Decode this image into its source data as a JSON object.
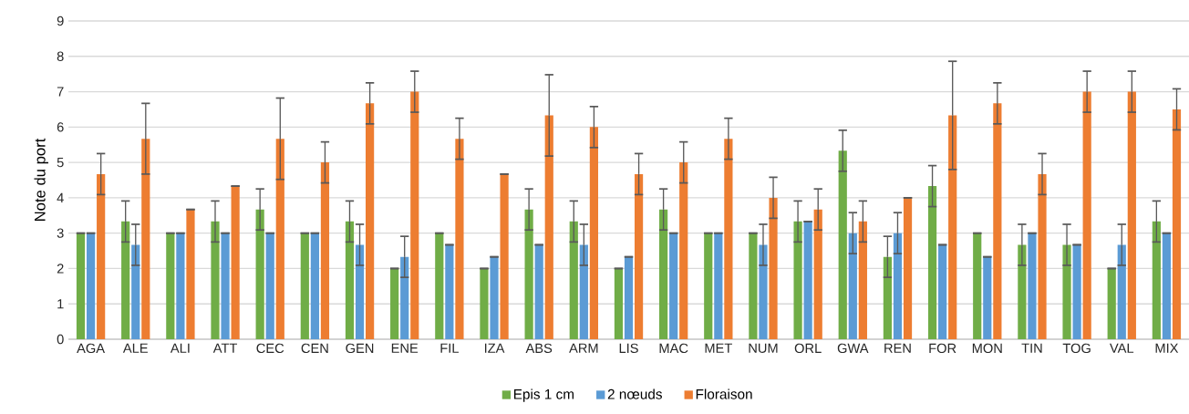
{
  "chart_data": {
    "type": "bar",
    "ylabel": "Note du port",
    "categories": [
      "AGA",
      "ALE",
      "ALI",
      "ATT",
      "CEC",
      "CEN",
      "GEN",
      "ENE",
      "FIL",
      "IZA",
      "ABS",
      "ARM",
      "LIS",
      "MAC",
      "MET",
      "NUM",
      "ORL",
      "GWA",
      "REN",
      "FOR",
      "MON",
      "TIN",
      "TOG",
      "VAL",
      "MIX"
    ],
    "series": [
      {
        "name": "Epis 1 cm",
        "color": "#70ad47",
        "values": [
          3,
          3.33,
          3,
          3.33,
          3.67,
          3,
          3.33,
          2,
          3,
          2,
          3.67,
          3.33,
          2,
          3.67,
          3,
          3,
          3.33,
          5.33,
          2.33,
          4.33,
          3,
          2.67,
          2.67,
          2,
          3.33
        ],
        "errors": [
          0,
          0.58,
          0,
          0.58,
          0.58,
          0,
          0.58,
          0,
          0,
          0,
          0.58,
          0.58,
          0,
          0.58,
          0,
          0,
          0.58,
          0.58,
          0.58,
          0.58,
          0,
          0.58,
          0.58,
          0,
          0.58
        ]
      },
      {
        "name": "2 nœuds",
        "color": "#5b9bd5",
        "values": [
          3,
          2.67,
          3,
          3,
          3,
          3,
          2.67,
          2.33,
          2.67,
          2.33,
          2.67,
          2.67,
          2.33,
          3,
          3,
          2.67,
          3.33,
          3,
          3,
          2.67,
          2.33,
          3,
          2.67,
          2.67,
          3
        ],
        "errors": [
          0,
          0.58,
          0,
          0,
          0,
          0,
          0.58,
          0.58,
          0,
          0,
          0,
          0.58,
          0,
          0,
          0,
          0.58,
          0,
          0.58,
          0.58,
          0,
          0,
          0,
          0,
          0.58,
          0
        ]
      },
      {
        "name": "Floraison",
        "color": "#ed7d31",
        "values": [
          4.67,
          5.67,
          3.67,
          4.33,
          5.67,
          5,
          6.67,
          7,
          5.67,
          4.67,
          6.33,
          6,
          4.67,
          5,
          5.67,
          4,
          3.67,
          3.33,
          4,
          6.33,
          6.67,
          4.67,
          7,
          7,
          6.5
        ],
        "errors": [
          0.58,
          1,
          0,
          0,
          1.15,
          0.58,
          0.58,
          0.58,
          0.58,
          0,
          1.15,
          0.58,
          0.58,
          0.58,
          0.58,
          0.58,
          0.58,
          0.58,
          0,
          1.53,
          0.58,
          0.58,
          0.58,
          0.58,
          0.58
        ]
      }
    ],
    "ylim": [
      0,
      9
    ],
    "yticks": [
      0,
      1,
      2,
      3,
      4,
      5,
      6,
      7,
      8,
      9
    ],
    "grid": "y",
    "legend": "bottom"
  }
}
